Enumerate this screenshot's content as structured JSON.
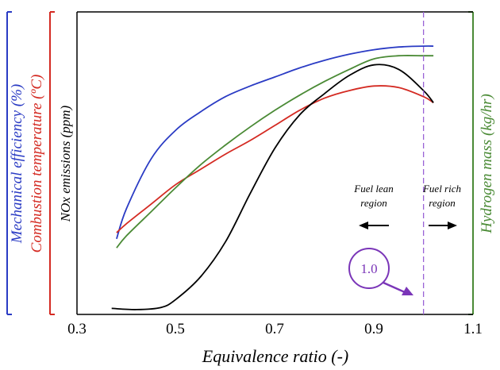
{
  "chart_data": {
    "type": "line",
    "xlabel": "Equivalence ratio (-)",
    "x_ticks": [
      "0.3",
      "0.5",
      "0.7",
      "0.9",
      "1.1"
    ],
    "xlim": [
      0.3,
      1.1
    ],
    "ylim": [
      0,
      100
    ],
    "y_axes": [
      {
        "label": "Mechanical efficiency (%)",
        "color": "#2a3bc4"
      },
      {
        "label": "Combustion temperature (ºC)",
        "color": "#d42a22"
      },
      {
        "label": "NOx emissions (ppm)",
        "color": "#000000"
      },
      {
        "label": "Hydrogen mass (kg/hr)",
        "color": "#4a8a35"
      }
    ],
    "series": [
      {
        "name": "Mechanical efficiency (%)",
        "color": "#2a3bc4",
        "x": [
          0.38,
          0.4,
          0.45,
          0.5,
          0.55,
          0.6,
          0.65,
          0.7,
          0.75,
          0.8,
          0.85,
          0.9,
          0.95,
          1.0,
          1.02
        ],
        "y": [
          25.0,
          35.0,
          51.5,
          61.0,
          67.0,
          72.0,
          75.5,
          78.5,
          81.5,
          84.0,
          86.0,
          87.5,
          88.4,
          88.7,
          88.7
        ]
      },
      {
        "name": "Combustion temperature (ºC)",
        "color": "#d42a22",
        "x": [
          0.38,
          0.4,
          0.45,
          0.5,
          0.55,
          0.6,
          0.65,
          0.7,
          0.75,
          0.8,
          0.85,
          0.9,
          0.95,
          1.0,
          1.02
        ],
        "y": [
          27.0,
          30.0,
          36.5,
          43.0,
          48.0,
          53.0,
          57.5,
          62.5,
          67.5,
          71.5,
          74.0,
          75.5,
          75.0,
          72.0,
          70.0
        ]
      },
      {
        "name": "NOx emissions (ppm)",
        "color": "#000000",
        "x": [
          0.37,
          0.42,
          0.47,
          0.5,
          0.55,
          0.6,
          0.65,
          0.7,
          0.75,
          0.8,
          0.85,
          0.9,
          0.95,
          1.0,
          1.02
        ],
        "y": [
          2.0,
          1.6,
          2.3,
          5.0,
          12.5,
          24.0,
          40.0,
          55.0,
          66.0,
          73.0,
          79.0,
          82.5,
          81.0,
          74.0,
          70.0
        ]
      },
      {
        "name": "Hydrogen mass (kg/hr)",
        "color": "#4a8a35",
        "x": [
          0.38,
          0.4,
          0.45,
          0.5,
          0.55,
          0.6,
          0.65,
          0.7,
          0.75,
          0.8,
          0.85,
          0.9,
          0.95,
          1.0,
          1.02
        ],
        "y": [
          22.0,
          26.0,
          34.0,
          42.0,
          49.5,
          56.0,
          62.0,
          67.5,
          72.5,
          77.0,
          81.0,
          84.5,
          85.5,
          85.5,
          85.5
        ]
      }
    ],
    "vline": {
      "x": 1.0,
      "color": "#9a62d6",
      "style": "dashed"
    },
    "annotations": {
      "lean_label_line1": "Fuel lean",
      "lean_label_line2": "region",
      "rich_label_line1": "Fuel rich",
      "rich_label_line2": "region",
      "callout": "1.0",
      "callout_color": "#7a35b8"
    },
    "grid": false
  }
}
